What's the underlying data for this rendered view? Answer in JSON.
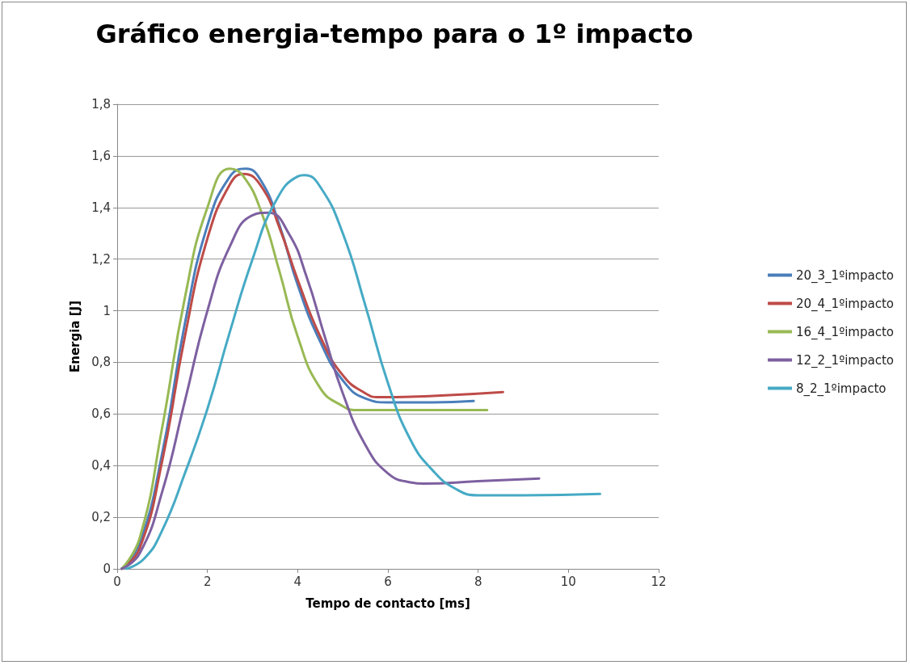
{
  "chart_data": {
    "type": "line",
    "title": "Gráfico energia-tempo para o 1º impacto",
    "xlabel": "Tempo de contacto [ms]",
    "ylabel": "Energia [J]",
    "xlim": [
      0,
      12
    ],
    "xticks": [
      0,
      2,
      4,
      6,
      8,
      10,
      12
    ],
    "ylim": [
      0,
      1.8
    ],
    "yticks": [
      0,
      {
        "value": 0.2,
        "label": "0,2"
      },
      {
        "value": 0.4,
        "label": "0,4"
      },
      {
        "value": 0.6,
        "label": "0,6"
      },
      {
        "value": 0.8,
        "label": "0,8"
      },
      1,
      {
        "value": 1.2,
        "label": "1,2"
      },
      {
        "value": 1.4,
        "label": "1,4"
      },
      {
        "value": 1.6,
        "label": "1,6"
      },
      {
        "value": 1.8,
        "label": "1,8"
      }
    ],
    "grid": "y",
    "legend": "right",
    "marker": "none",
    "line_style": "solid",
    "series": [
      {
        "name": "20_3_1ºimpacto",
        "color": "#4a7ebb",
        "x": [
          0.1,
          0.5,
          1,
          1.5,
          2,
          2.5,
          2.85,
          3.2,
          3.6,
          4,
          4.5,
          5,
          5.5,
          6,
          7,
          7.9
        ],
        "values": [
          0,
          0.1,
          0.45,
          0.95,
          1.33,
          1.52,
          1.55,
          1.5,
          1.33,
          1.1,
          0.88,
          0.73,
          0.66,
          0.645,
          0.645,
          0.65
        ]
      },
      {
        "name": "20_4_1ºimpacto",
        "color": "#be4b48",
        "x": [
          0.1,
          0.5,
          1,
          1.5,
          2,
          2.5,
          2.8,
          3.2,
          3.6,
          4,
          4.5,
          5,
          5.5,
          5.8,
          7,
          8.55
        ],
        "values": [
          0,
          0.08,
          0.42,
          0.9,
          1.28,
          1.49,
          1.53,
          1.48,
          1.32,
          1.12,
          0.9,
          0.75,
          0.68,
          0.665,
          0.67,
          0.685
        ]
      },
      {
        "name": "16_4_1ºimpacto",
        "color": "#98b954",
        "x": [
          0.1,
          0.5,
          1,
          1.5,
          2,
          2.5,
          2.8,
          3.2,
          3.6,
          4,
          4.5,
          5,
          5.3,
          7,
          8.2
        ],
        "values": [
          0,
          0.12,
          0.55,
          1.05,
          1.4,
          1.55,
          1.52,
          1.38,
          1.15,
          0.9,
          0.7,
          0.63,
          0.615,
          0.615,
          0.615
        ]
      },
      {
        "name": "12_2_1ºimpacto",
        "color": "#7d60a0",
        "x": [
          0.1,
          0.5,
          1,
          1.5,
          2,
          2.5,
          3,
          3.35,
          3.8,
          4.2,
          4.6,
          5,
          5.5,
          6,
          6.5,
          6.8,
          8,
          9.35
        ],
        "values": [
          0,
          0.06,
          0.3,
          0.65,
          1.0,
          1.25,
          1.37,
          1.38,
          1.3,
          1.13,
          0.9,
          0.68,
          0.48,
          0.37,
          0.335,
          0.33,
          0.34,
          0.35
        ]
      },
      {
        "name": "8_2_1ºimpacto",
        "color": "#46aac5",
        "x": [
          0.2,
          0.6,
          1,
          1.5,
          2,
          2.5,
          3,
          3.5,
          4,
          4.15,
          4.5,
          5,
          5.5,
          6,
          6.5,
          7,
          7.5,
          8,
          9,
          10.7
        ],
        "values": [
          0,
          0.04,
          0.15,
          0.37,
          0.62,
          0.92,
          1.2,
          1.42,
          1.52,
          1.525,
          1.48,
          1.3,
          1.02,
          0.72,
          0.5,
          0.38,
          0.31,
          0.285,
          0.285,
          0.29
        ]
      }
    ]
  }
}
